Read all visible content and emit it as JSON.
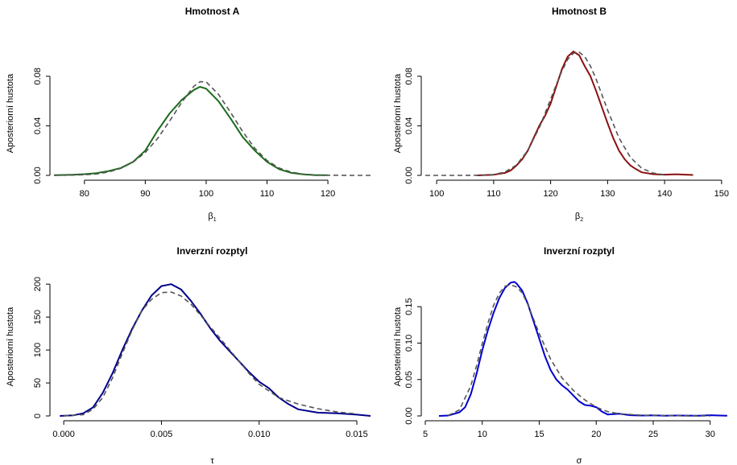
{
  "chart_data": [
    {
      "type": "line",
      "title": "Hmotnost A",
      "xlabel": "β",
      "xlabel_sub": "1",
      "ylabel": "Aposteriorní hustota",
      "xlim": [
        75,
        127
      ],
      "ylim": [
        0,
        0.1
      ],
      "xticks": [
        80,
        90,
        100,
        110,
        120
      ],
      "xtick_labels": [
        "80",
        "90",
        "100",
        "110",
        "120"
      ],
      "yticks": [
        0,
        0.04,
        0.08
      ],
      "ytick_labels": [
        "0.00",
        "0.04",
        "0.08"
      ],
      "colors": {
        "solid": "#1b6b1b",
        "dashed": "#555555"
      },
      "series": [
        {
          "style": "solid",
          "x": [
            75,
            78,
            80,
            82,
            84,
            86,
            88,
            90,
            92,
            94,
            96,
            98,
            99,
            100,
            102,
            104,
            106,
            108,
            110,
            112,
            114,
            116,
            118,
            120
          ],
          "y": [
            0.0001,
            0.0005,
            0.001,
            0.0018,
            0.0035,
            0.006,
            0.011,
            0.02,
            0.036,
            0.05,
            0.061,
            0.069,
            0.0715,
            0.07,
            0.06,
            0.046,
            0.031,
            0.02,
            0.011,
            0.005,
            0.002,
            0.0008,
            0.0002,
            0.0001
          ]
        },
        {
          "style": "dashed",
          "x": [
            75,
            78,
            80,
            82,
            84,
            86,
            88,
            90,
            92,
            94,
            96,
            98,
            99,
            100,
            102,
            104,
            106,
            108,
            110,
            112,
            114,
            116,
            118,
            120,
            124,
            127
          ],
          "y": [
            0,
            0.0002,
            0.0005,
            0.0012,
            0.0028,
            0.0057,
            0.0107,
            0.0185,
            0.0296,
            0.0438,
            0.059,
            0.072,
            0.0756,
            0.0755,
            0.0655,
            0.0509,
            0.0353,
            0.0218,
            0.012,
            0.0059,
            0.0026,
            0.001,
            0.0003,
            0.0001,
            0,
            0
          ]
        }
      ]
    },
    {
      "type": "line",
      "title": "Hmotnost B",
      "xlabel": "β",
      "xlabel_sub": "2",
      "ylabel": "Aposteriorní hustota",
      "xlim": [
        98,
        152
      ],
      "ylim": [
        0,
        0.1
      ],
      "xticks": [
        100,
        110,
        120,
        130,
        140,
        150
      ],
      "xtick_labels": [
        "100",
        "110",
        "120",
        "130",
        "140",
        "150"
      ],
      "yticks": [
        0,
        0.04,
        0.08
      ],
      "ytick_labels": [
        "0.00",
        "0.04",
        "0.08"
      ],
      "colors": {
        "solid": "#8b1010",
        "dashed": "#555555"
      },
      "series": [
        {
          "style": "solid",
          "x": [
            107,
            110,
            112,
            113,
            114,
            115,
            116,
            117,
            118,
            119,
            120,
            121,
            122,
            123,
            124,
            125,
            126,
            127,
            128,
            129,
            130,
            131,
            132,
            133,
            134,
            135,
            136,
            138,
            140,
            142,
            145
          ],
          "y": [
            0,
            0.0005,
            0.002,
            0.004,
            0.008,
            0.013,
            0.02,
            0.03,
            0.04,
            0.048,
            0.058,
            0.072,
            0.086,
            0.096,
            0.1,
            0.097,
            0.088,
            0.08,
            0.068,
            0.055,
            0.042,
            0.03,
            0.02,
            0.013,
            0.008,
            0.005,
            0.0025,
            0.001,
            0.0006,
            0.0009,
            0.0003
          ]
        },
        {
          "style": "dashed",
          "x": [
            98,
            104,
            108,
            110,
            112,
            114,
            116,
            118,
            120,
            121,
            122,
            123,
            124,
            125,
            126,
            127,
            128,
            130,
            132,
            134,
            136,
            138,
            140
          ],
          "y": [
            0,
            0,
            0.0001,
            0.0006,
            0.0027,
            0.0084,
            0.0201,
            0.0384,
            0.0614,
            0.0734,
            0.0845,
            0.0937,
            0.0986,
            0.0995,
            0.0958,
            0.0882,
            0.0775,
            0.0526,
            0.0302,
            0.0145,
            0.0057,
            0.0018,
            0.0004
          ]
        }
      ]
    },
    {
      "type": "line",
      "title": "Inverzní rozptyl",
      "xlabel": "τ",
      "ylabel": "Aposteriorní hustota",
      "xlim": [
        -0.0005,
        0.0157
      ],
      "ylim": [
        0,
        210
      ],
      "xticks": [
        0,
        0.005,
        0.01,
        0.015
      ],
      "xtick_labels": [
        "0.000",
        "0.005",
        "0.010",
        "0.015"
      ],
      "yticks": [
        0,
        50,
        100,
        150,
        200
      ],
      "ytick_labels": [
        "0",
        "50",
        "100",
        "150",
        "200"
      ],
      "colors": {
        "solid": "#00008b",
        "dashed": "#555555"
      },
      "series": [
        {
          "style": "solid",
          "x": [
            -0.0002,
            0.0005,
            0.001,
            0.0015,
            0.002,
            0.0025,
            0.003,
            0.0035,
            0.004,
            0.0045,
            0.005,
            0.0055,
            0.006,
            0.0065,
            0.007,
            0.0075,
            0.008,
            0.0085,
            0.009,
            0.0095,
            0.01,
            0.0105,
            0.011,
            0.0115,
            0.012,
            0.013,
            0.014,
            0.015,
            0.0157
          ],
          "y": [
            0,
            1,
            4,
            13,
            35,
            65,
            100,
            132,
            160,
            183,
            197,
            200,
            192,
            175,
            155,
            133,
            114,
            98,
            82,
            66,
            52,
            42,
            28,
            18,
            10,
            5,
            4,
            2,
            0
          ]
        },
        {
          "style": "dashed",
          "x": [
            0,
            0.001,
            0.0015,
            0.002,
            0.0025,
            0.003,
            0.0035,
            0.004,
            0.0045,
            0.005,
            0.0055,
            0.006,
            0.0065,
            0.007,
            0.0075,
            0.008,
            0.0085,
            0.009,
            0.0095,
            0.01,
            0.0105,
            0.011,
            0.012,
            0.013,
            0.014,
            0.015
          ],
          "y": [
            0,
            2,
            10,
            28,
            58,
            95,
            130,
            160,
            177,
            187,
            188,
            182,
            170,
            153,
            135,
            118,
            100,
            82,
            64,
            48,
            38,
            28,
            18,
            11,
            6,
            3
          ]
        }
      ]
    },
    {
      "type": "line",
      "title": "Inverzní rozptyl",
      "xlabel": "σ",
      "ylabel": "Aposteriorní hustota",
      "xlim": [
        5,
        32
      ],
      "ylim": [
        0,
        0.19
      ],
      "xticks": [
        5,
        10,
        15,
        20,
        25,
        30
      ],
      "xtick_labels": [
        "5",
        "10",
        "15",
        "20",
        "25",
        "30"
      ],
      "yticks": [
        0,
        0.05,
        0.1,
        0.15
      ],
      "ytick_labels": [
        "0.00",
        "0.05",
        "0.10",
        "0.15"
      ],
      "colors": {
        "solid": "#0000cd",
        "dashed": "#555555"
      },
      "series": [
        {
          "style": "solid",
          "x": [
            6.2,
            7,
            8,
            8.5,
            9,
            9.5,
            10,
            10.5,
            11,
            11.5,
            12,
            12.5,
            12.8,
            13,
            13.5,
            14,
            14.5,
            15,
            15.5,
            16,
            16.5,
            17,
            17.5,
            18,
            18.5,
            19,
            19.5,
            20,
            20.5,
            21,
            22,
            23,
            24,
            25,
            26,
            27,
            28,
            29,
            30,
            31.5
          ],
          "y": [
            0,
            0.0005,
            0.005,
            0.012,
            0.03,
            0.058,
            0.09,
            0.118,
            0.142,
            0.162,
            0.176,
            0.183,
            0.184,
            0.182,
            0.172,
            0.154,
            0.13,
            0.106,
            0.082,
            0.063,
            0.05,
            0.042,
            0.036,
            0.028,
            0.02,
            0.015,
            0.014,
            0.012,
            0.006,
            0.002,
            0.003,
            0.001,
            0.0005,
            0.0008,
            0.0003,
            0.0005,
            0.0004,
            0.0003,
            0.001,
            0.0002
          ]
        },
        {
          "style": "dashed",
          "x": [
            7,
            8,
            9,
            9.5,
            10,
            10.5,
            11,
            11.5,
            12,
            12.5,
            13,
            13.5,
            14,
            14.5,
            15,
            16,
            17,
            18,
            19,
            20,
            21,
            22,
            24,
            26,
            28,
            30
          ],
          "y": [
            0.0006,
            0.0083,
            0.0417,
            0.069,
            0.0991,
            0.1273,
            0.1521,
            0.1687,
            0.1781,
            0.1801,
            0.1772,
            0.169,
            0.153,
            0.133,
            0.113,
            0.078,
            0.052,
            0.035,
            0.022,
            0.012,
            0.006,
            0.003,
            0.001,
            0.0004,
            0.0001,
            0
          ]
        }
      ]
    }
  ]
}
